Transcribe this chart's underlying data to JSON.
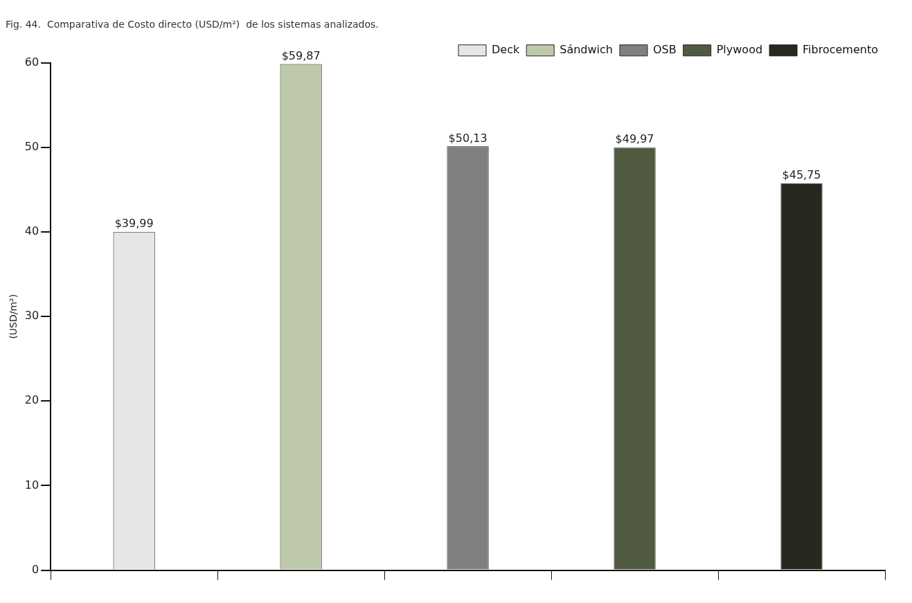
{
  "chart_data": {
    "type": "bar",
    "title": "Fig. 44.  Comparativa de Costo directo (USD/m²)  de los sistemas analizados.",
    "ylabel": "(USD/m²)",
    "categories": [
      null,
      null,
      null,
      null,
      null
    ],
    "series": [
      {
        "name": "Deck",
        "color": "#e6e6e6",
        "values": [
          39.99,
          null,
          null,
          null,
          null
        ],
        "value_labels": [
          "$39,99",
          null,
          null,
          null,
          null
        ]
      },
      {
        "name": "Sándwich",
        "color": "#bec8ab",
        "values": [
          null,
          59.87,
          null,
          null,
          null
        ],
        "value_labels": [
          null,
          "$59,87",
          null,
          null,
          null
        ]
      },
      {
        "name": "OSB",
        "color": "#808080",
        "values": [
          null,
          null,
          50.13,
          null,
          null
        ],
        "value_labels": [
          null,
          null,
          "$50,13",
          null,
          null
        ]
      },
      {
        "name": "Plywood",
        "color": "#505a40",
        "values": [
          null,
          null,
          null,
          49.97,
          null
        ],
        "value_labels": [
          null,
          null,
          null,
          "$49,97",
          null
        ]
      },
      {
        "name": "Fibrocemento",
        "color": "#28281e",
        "values": [
          null,
          null,
          null,
          null,
          45.75
        ],
        "value_labels": [
          null,
          null,
          null,
          null,
          "$45,75"
        ]
      }
    ],
    "ylim": [
      0,
      60
    ],
    "yticks": [
      0,
      10,
      20,
      30,
      40,
      50,
      60
    ],
    "grid": false,
    "legend": "top right"
  }
}
